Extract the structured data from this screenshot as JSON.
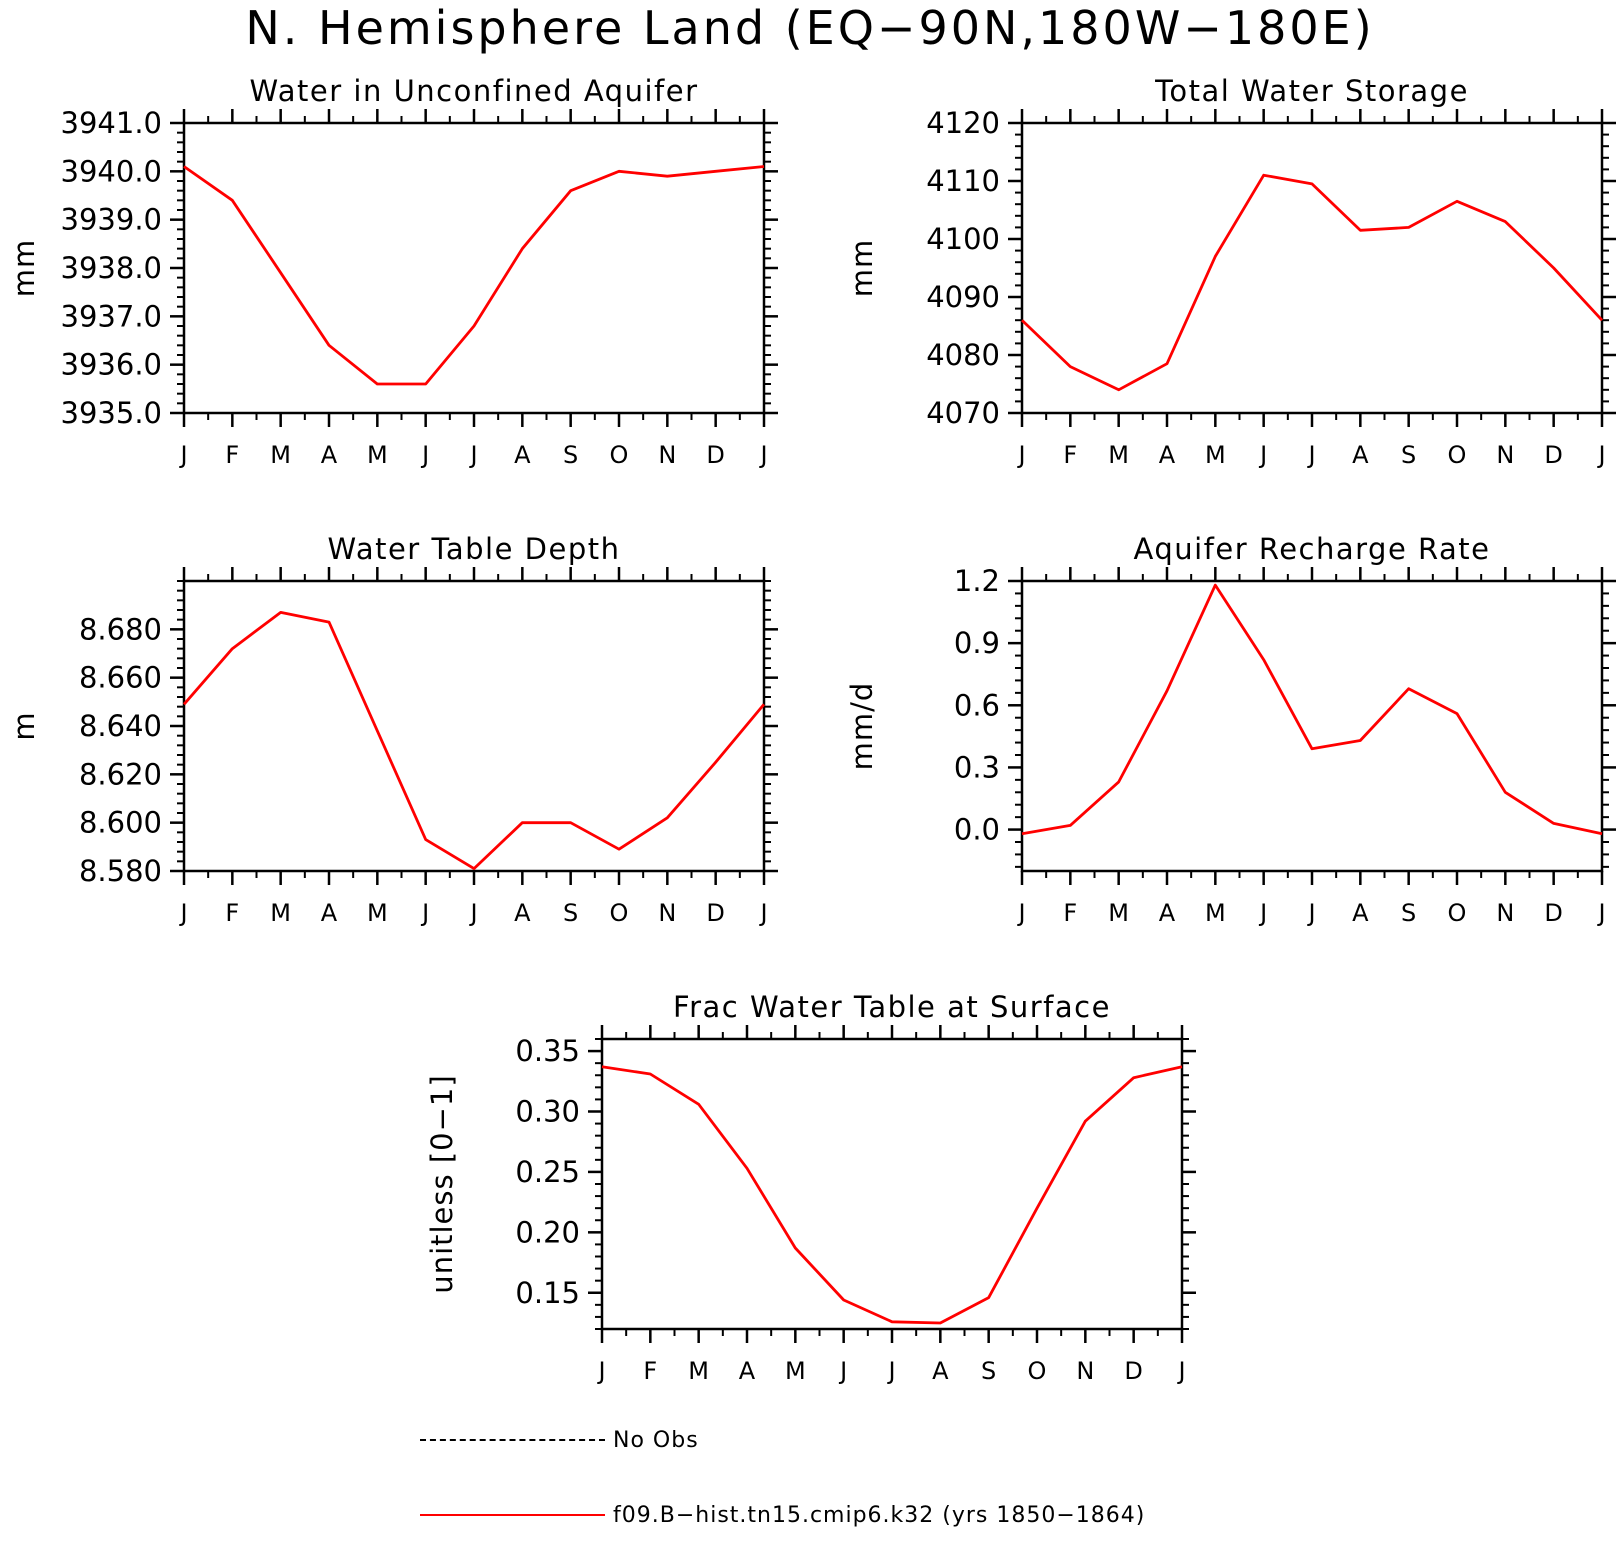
{
  "title": "N. Hemisphere Land (EQ−90N,180W−180E)",
  "line_color": "#ff0000",
  "month_labels": [
    "J",
    "F",
    "M",
    "A",
    "M",
    "J",
    "J",
    "A",
    "S",
    "O",
    "N",
    "D",
    "J"
  ],
  "chart_data": [
    {
      "type": "line",
      "title": "Water in Unconfined Aquifer",
      "ylabel": "mm",
      "ylim": [
        3935.0,
        3941.0
      ],
      "yticks": [
        3935.0,
        3936.0,
        3937.0,
        3938.0,
        3939.0,
        3940.0,
        3941.0
      ],
      "ytick_labels": [
        "3935.0",
        "3936.0",
        "3937.0",
        "3938.0",
        "3939.0",
        "3940.0",
        "3941.0"
      ],
      "x": [
        "J",
        "F",
        "M",
        "A",
        "M",
        "J",
        "J",
        "A",
        "S",
        "O",
        "N",
        "D",
        "J"
      ],
      "series": [
        {
          "name": "f09.B−hist.tn15.cmip6.k32 (yrs 1850−1864)",
          "values": [
            3940.1,
            3939.4,
            3937.9,
            3936.4,
            3935.6,
            3935.6,
            3936.8,
            3938.4,
            3939.6,
            3940.0,
            3939.9,
            3940.0,
            3940.1
          ]
        }
      ]
    },
    {
      "type": "line",
      "title": "Total Water Storage",
      "ylabel": "mm",
      "ylim": [
        4070,
        4120
      ],
      "yticks": [
        4070,
        4080,
        4090,
        4100,
        4110,
        4120
      ],
      "ytick_labels": [
        "4070",
        "4080",
        "4090",
        "4100",
        "4110",
        "4120"
      ],
      "x": [
        "J",
        "F",
        "M",
        "A",
        "M",
        "J",
        "J",
        "A",
        "S",
        "O",
        "N",
        "D",
        "J"
      ],
      "series": [
        {
          "name": "f09.B−hist.tn15.cmip6.k32 (yrs 1850−1864)",
          "values": [
            4086,
            4078,
            4074,
            4078.5,
            4097,
            4111,
            4109.5,
            4101.5,
            4102,
            4106.5,
            4103,
            4095,
            4086
          ]
        }
      ]
    },
    {
      "type": "line",
      "title": "Water Table Depth",
      "ylabel": "m",
      "ylim": [
        8.58,
        8.7
      ],
      "yticks": [
        8.58,
        8.6,
        8.62,
        8.64,
        8.66,
        8.68
      ],
      "ytick_labels": [
        "8.580",
        "8.600",
        "8.620",
        "8.640",
        "8.660",
        "8.680"
      ],
      "x": [
        "J",
        "F",
        "M",
        "A",
        "M",
        "J",
        "J",
        "A",
        "S",
        "O",
        "N",
        "D",
        "J"
      ],
      "series": [
        {
          "name": "f09.B−hist.tn15.cmip6.k32 (yrs 1850−1864)",
          "values": [
            8.649,
            8.672,
            8.687,
            8.683,
            8.638,
            8.593,
            8.581,
            8.6,
            8.6,
            8.589,
            8.602,
            8.625,
            8.649
          ]
        }
      ]
    },
    {
      "type": "line",
      "title": "Aquifer Recharge Rate",
      "ylabel": "mm/d",
      "ylim": [
        -0.2,
        1.2
      ],
      "yticks": [
        0.0,
        0.3,
        0.6,
        0.9,
        1.2
      ],
      "ytick_labels": [
        "0.0",
        "0.3",
        "0.6",
        "0.9",
        "1.2"
      ],
      "x": [
        "J",
        "F",
        "M",
        "A",
        "M",
        "J",
        "J",
        "A",
        "S",
        "O",
        "N",
        "D",
        "J"
      ],
      "series": [
        {
          "name": "f09.B−hist.tn15.cmip6.k32 (yrs 1850−1864)",
          "values": [
            -0.02,
            0.02,
            0.23,
            0.67,
            1.18,
            0.82,
            0.39,
            0.43,
            0.68,
            0.56,
            0.18,
            0.03,
            -0.02
          ]
        }
      ]
    },
    {
      "type": "line",
      "title": "Frac Water Table at Surface",
      "ylabel": "unitless [0−1]",
      "ylim": [
        0.12,
        0.36
      ],
      "yticks": [
        0.15,
        0.2,
        0.25,
        0.3,
        0.35
      ],
      "ytick_labels": [
        "0.15",
        "0.20",
        "0.25",
        "0.30",
        "0.35"
      ],
      "x": [
        "J",
        "F",
        "M",
        "A",
        "M",
        "J",
        "J",
        "A",
        "S",
        "O",
        "N",
        "D",
        "J"
      ],
      "series": [
        {
          "name": "f09.B−hist.tn15.cmip6.k32 (yrs 1850−1864)",
          "values": [
            0.337,
            0.331,
            0.306,
            0.253,
            0.187,
            0.144,
            0.126,
            0.125,
            0.146,
            0.22,
            0.292,
            0.328,
            0.337
          ]
        }
      ]
    }
  ],
  "legend": {
    "entries": [
      {
        "label": "No Obs",
        "style": "dashed",
        "color": "#000000"
      },
      {
        "label": "f09.B−hist.tn15.cmip6.k32 (yrs 1850−1864)",
        "style": "solid",
        "color": "#ff0000"
      }
    ]
  }
}
